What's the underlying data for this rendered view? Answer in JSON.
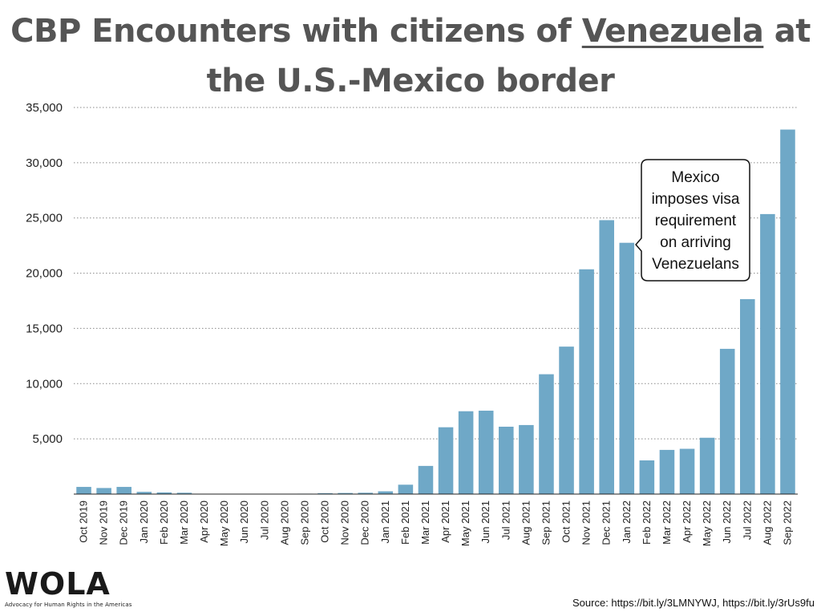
{
  "title": {
    "line1_prefix": "CBP Encounters with citizens of ",
    "line1_country": "Venezuela",
    "line1_suffix": " at",
    "line2": "the U.S.-Mexico border"
  },
  "chart_data": {
    "type": "bar",
    "categories": [
      "Oct 2019",
      "Nov 2019",
      "Dec 2019",
      "Jan 2020",
      "Feb 2020",
      "Mar 2020",
      "Apr 2020",
      "May 2020",
      "Jun 2020",
      "Jul 2020",
      "Aug 2020",
      "Sep 2020",
      "Oct 2020",
      "Nov 2020",
      "Dec 2020",
      "Jan 2021",
      "Feb 2021",
      "Mar 2021",
      "Apr 2021",
      "May 2021",
      "Jun 2021",
      "Jul 2021",
      "Aug 2021",
      "Sep 2021",
      "Oct 2021",
      "Nov 2021",
      "Dec 2021",
      "Jan 2022",
      "Feb 2022",
      "Mar 2022",
      "Apr 2022",
      "May 2022",
      "Jun 2022",
      "Jul 2022",
      "Aug 2022",
      "Sep 2022"
    ],
    "values": [
      650,
      550,
      650,
      200,
      150,
      120,
      10,
      15,
      15,
      20,
      30,
      40,
      80,
      100,
      120,
      250,
      850,
      2550,
      6050,
      7500,
      7550,
      6100,
      6250,
      10850,
      13350,
      20350,
      24800,
      22750,
      3050,
      4000,
      4100,
      5100,
      13150,
      17650,
      25350,
      33000
    ],
    "ylim": [
      0,
      35000
    ],
    "yticks": [
      0,
      5000,
      10000,
      15000,
      20000,
      25000,
      30000,
      35000
    ],
    "ytick_labels": [
      "",
      "5,000",
      "10,000",
      "15,000",
      "20,000",
      "25,000",
      "30,000",
      "35,000"
    ],
    "grid": true,
    "bar_color": "#6fa8c7",
    "annotation": {
      "lines": [
        "Mexico",
        "imposes visa",
        "requirement",
        "on arriving",
        "Venezuelans"
      ],
      "points_to": "Jan 2022"
    }
  },
  "logo": {
    "text": "WOLA",
    "tagline": "Advocacy for Human Rights in the Americas"
  },
  "source": "Source: https://bit.ly/3LMNYWJ, https://bit.ly/3rUs9fu"
}
